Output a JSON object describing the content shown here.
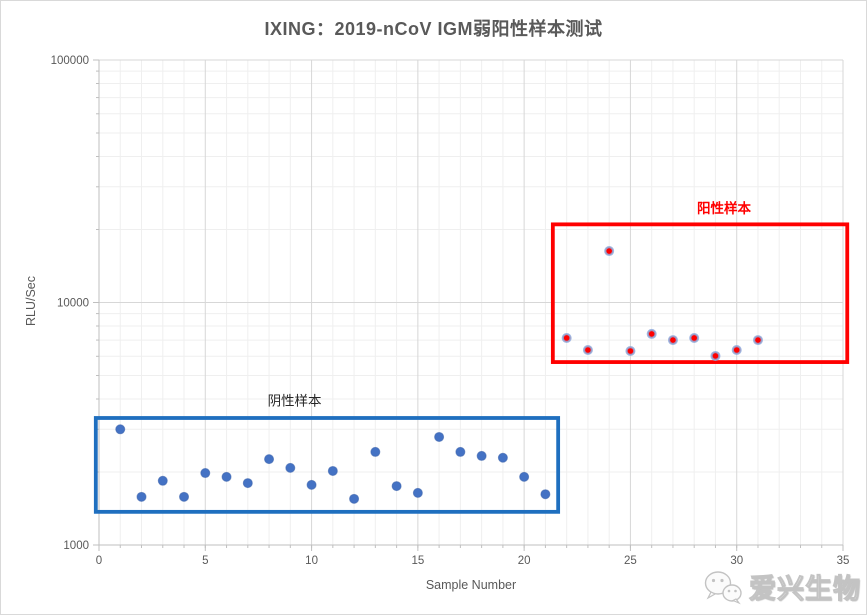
{
  "chart_data": {
    "type": "scatter",
    "title": "IXING：2019-nCoV IGM弱阳性样本测试",
    "xlabel": "Sample Number",
    "ylabel": "RLU/Sec",
    "x_axis": {
      "min": 0,
      "max": 35,
      "major_ticks": [
        0,
        5,
        10,
        15,
        20,
        25,
        30,
        35
      ],
      "minor_tick_step": 1
    },
    "y_axis": {
      "scale": "log",
      "min": 1000,
      "max": 100000,
      "major_ticks": [
        1000,
        10000,
        100000
      ],
      "minor_gridlines": true
    },
    "series": [
      {
        "name": "阴性样本",
        "marker_color": "#4472C4",
        "marker_border_color": "#3A63AC",
        "x": [
          1,
          2,
          3,
          4,
          5,
          6,
          7,
          8,
          9,
          10,
          11,
          12,
          13,
          14,
          15,
          16,
          17,
          18,
          19,
          20,
          21
        ],
        "y": [
          3000,
          1580,
          1840,
          1580,
          1980,
          1910,
          1800,
          2260,
          2080,
          1770,
          2020,
          1550,
          2420,
          1750,
          1640,
          2790,
          2420,
          2330,
          2290,
          1910,
          1620
        ]
      },
      {
        "name": "阳性样本",
        "marker_color": "#FF0000",
        "marker_border_color": "#8FAADC",
        "x": [
          22,
          23,
          24,
          25,
          26,
          27,
          28,
          29,
          30,
          31
        ],
        "y": [
          7140,
          6370,
          16300,
          6310,
          7420,
          7000,
          7140,
          6020,
          6370,
          7000
        ]
      }
    ],
    "annotations": [
      {
        "label": "阴性样本",
        "text_color": "#262626",
        "text_bold": false,
        "box_color": "#1F6FBF",
        "x_range": [
          -0.15,
          21.6
        ],
        "y_range": [
          1370,
          3340
        ],
        "label_pos": {
          "x": 9.2,
          "y": 3950
        }
      },
      {
        "label": "阳性样本",
        "text_color": "#FF0000",
        "text_bold": true,
        "box_color": "#FF0000",
        "x_range": [
          21.35,
          35.2
        ],
        "y_range": [
          5680,
          21000
        ],
        "label_pos": {
          "x": 29.4,
          "y": 24500
        }
      }
    ]
  },
  "watermark": {
    "text": "爱兴生物",
    "icon": "wechat-logo"
  }
}
